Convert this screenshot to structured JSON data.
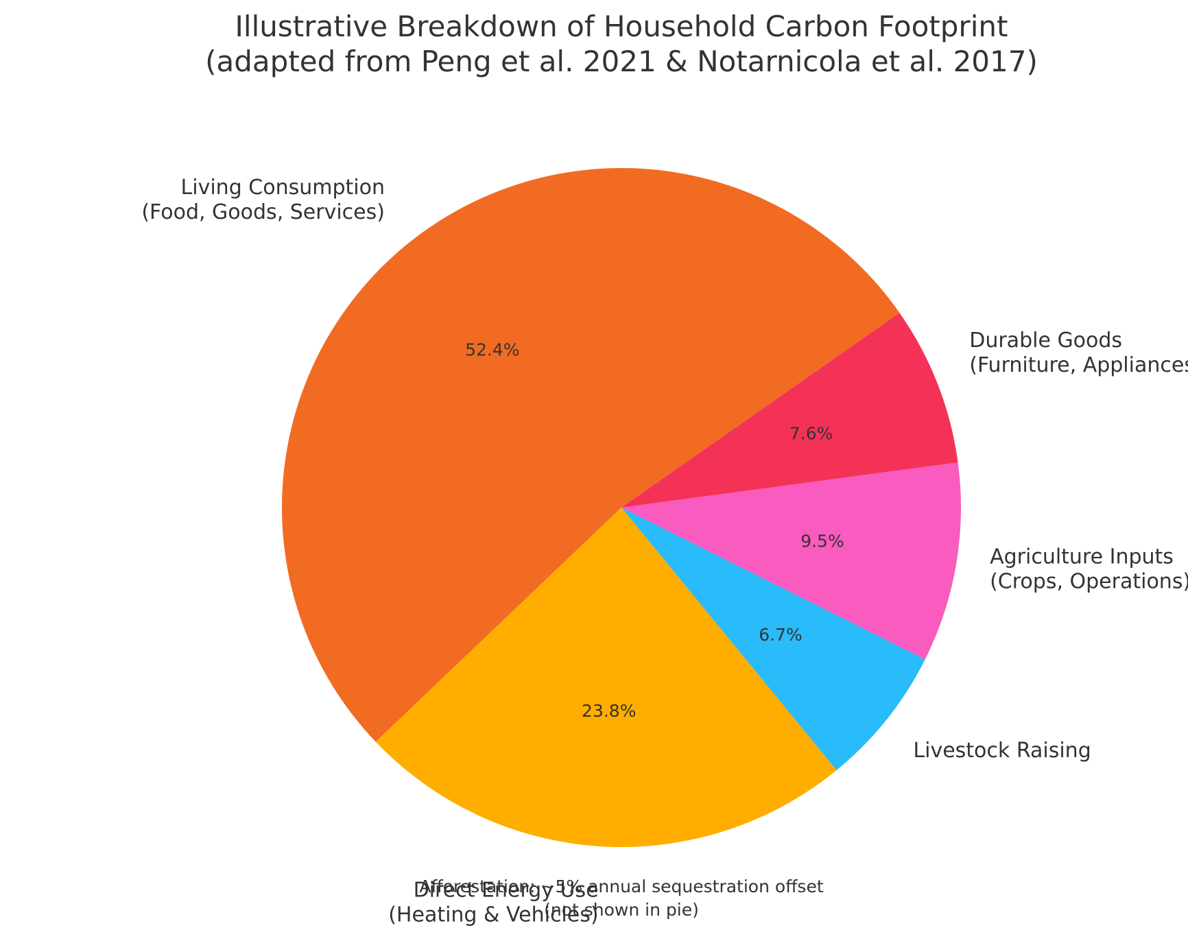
{
  "chart_data": {
    "type": "pie",
    "title_lines": [
      "Illustrative Breakdown of Household Carbon Footprint",
      "(adapted from Peng et al. 2021 & Notarnicola et al. 2017)"
    ],
    "slices": [
      {
        "label_lines": [
          "Living Consumption",
          "(Food, Goods, Services)"
        ],
        "value": 52.4,
        "pct_text": "52.4%",
        "color": "#F26B22"
      },
      {
        "label_lines": [
          "Direct Energy Use",
          "(Heating & Vehicles)"
        ],
        "value": 23.8,
        "pct_text": "23.8%",
        "color": "#FFAE00"
      },
      {
        "label_lines": [
          "Livestock Raising"
        ],
        "value": 6.7,
        "pct_text": "6.7%",
        "color": "#29BBFA"
      },
      {
        "label_lines": [
          "Agriculture Inputs",
          "(Crops, Operations)"
        ],
        "value": 9.5,
        "pct_text": "9.5%",
        "color": "#F95BBF"
      },
      {
        "label_lines": [
          "Durable Goods",
          "(Furniture, Appliances)"
        ],
        "value": 7.6,
        "pct_text": "7.6%",
        "color": "#F43257"
      }
    ],
    "start_angle_deg": 35,
    "direction": "counterclockwise",
    "legend": "none",
    "annotation_lines": [
      "Afforestation: ~5% annual sequestration offset",
      "(not shown in pie)"
    ]
  }
}
